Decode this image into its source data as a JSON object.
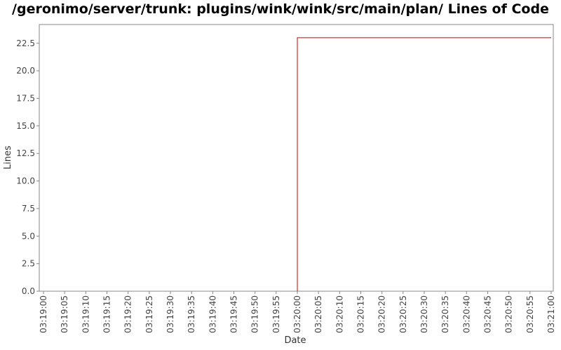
{
  "chart_data": {
    "type": "line",
    "title": "/geronimo/server/trunk: plugins/wink/wink/src/main/plan/ Lines of Code",
    "xlabel": "Date",
    "ylabel": "Lines",
    "x_ticks": [
      "03:19:00",
      "03:19:05",
      "03:19:10",
      "03:19:15",
      "03:19:20",
      "03:19:25",
      "03:19:30",
      "03:19:35",
      "03:19:40",
      "03:19:45",
      "03:19:50",
      "03:19:55",
      "03:20:00",
      "03:20:05",
      "03:20:10",
      "03:20:15",
      "03:20:20",
      "03:20:25",
      "03:20:30",
      "03:20:35",
      "03:20:40",
      "03:20:45",
      "03:20:50",
      "03:20:55",
      "03:21:00"
    ],
    "y_ticks": [
      "0.0",
      "2.5",
      "5.0",
      "7.5",
      "10.0",
      "12.5",
      "15.0",
      "17.5",
      "20.0",
      "22.5"
    ],
    "ylim": [
      0,
      24.2
    ],
    "xlim": [
      "03:18:59",
      "03:21:00.5"
    ],
    "series": [
      {
        "color": "#cc0000",
        "points": [
          {
            "x": "03:20:00",
            "y": 0
          },
          {
            "x": "03:20:00",
            "y": 23
          },
          {
            "x": "03:21:00",
            "y": 23
          }
        ]
      }
    ],
    "grid": false,
    "legend": "none"
  }
}
